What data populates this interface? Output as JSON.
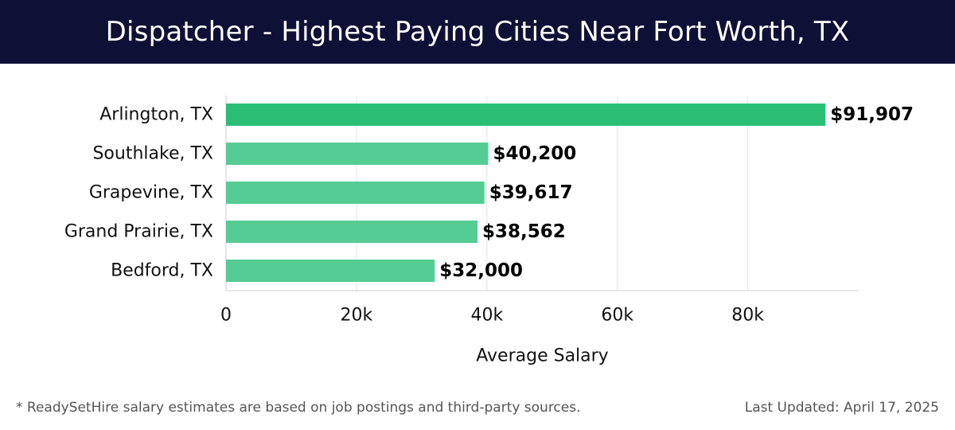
{
  "header": {
    "title": "Dispatcher - Highest Paying Cities Near Fort Worth, TX"
  },
  "footer": {
    "note": "* ReadySetHire salary estimates are based on job postings and third-party sources.",
    "last_updated": "Last Updated: April 17, 2025"
  },
  "colors": {
    "header_bg": "#0f1035",
    "bar_top": "#2bbf75",
    "bar": "#55cc94",
    "grid": "#e3e3e3",
    "axis": "#cccccc"
  },
  "chart_data": {
    "type": "bar",
    "orientation": "horizontal",
    "categories": [
      "Arlington, TX",
      "Southlake, TX",
      "Grapevine, TX",
      "Grand Prairie, TX",
      "Bedford, TX"
    ],
    "values": [
      91907,
      40200,
      39617,
      38562,
      32000
    ],
    "data_labels": [
      "$91,907",
      "$40,200",
      "$39,617",
      "$38,562",
      "$32,000"
    ],
    "xlabel": "Average Salary",
    "ylabel": "",
    "xlim": [
      0,
      97000
    ],
    "xticks": [
      0,
      20000,
      40000,
      60000,
      80000
    ],
    "xtick_labels": [
      "0",
      "20k",
      "40k",
      "60k",
      "80k"
    ],
    "grid": true
  }
}
